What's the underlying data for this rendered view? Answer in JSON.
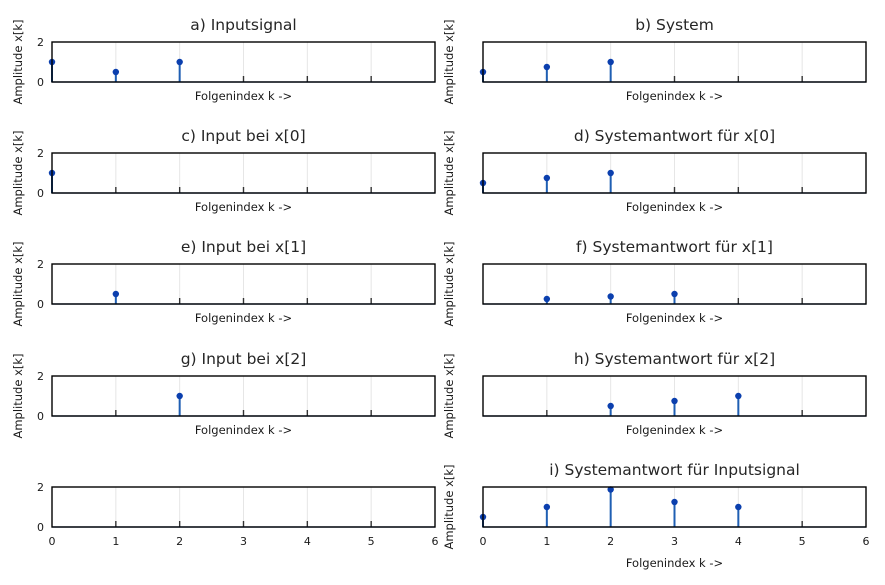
{
  "colors": {
    "stem": "#1f5fb3",
    "marker": "#0b3fae",
    "frame": "#000000",
    "grid": "#e6e6e6",
    "text": "#262626"
  },
  "chart_data": [
    {
      "id": "a",
      "type": "stem",
      "title": "a) Inputsignal",
      "xlabel": "Folgenindex k ->",
      "ylabel": "Amplitude x[k]",
      "x": [
        0,
        1,
        2,
        3,
        4,
        5
      ],
      "y": [
        1,
        0.5,
        1,
        0,
        0,
        0
      ],
      "xlim": [
        0,
        6
      ],
      "ylim": [
        0,
        2
      ],
      "yticks": [
        0,
        2
      ],
      "ytick_labels": [
        "0",
        "2"
      ],
      "xtick_labels": [],
      "grid": true
    },
    {
      "id": "b",
      "type": "stem",
      "title": "b) System",
      "xlabel": "Folgenindex k ->",
      "ylabel": "Amplitude x[k]",
      "x": [
        0,
        1,
        2,
        3,
        4,
        5
      ],
      "y": [
        0.5,
        0.75,
        1,
        0,
        0,
        0
      ],
      "xlim": [
        0,
        6
      ],
      "ylim": [
        0,
        2
      ],
      "yticks": [
        0,
        2
      ],
      "ytick_labels": [],
      "xtick_labels": [],
      "grid": true
    },
    {
      "id": "c",
      "type": "stem",
      "title": "c) Input bei x[0]",
      "xlabel": "Folgenindex k ->",
      "ylabel": "Amplitude x[k]",
      "x": [
        0,
        1,
        2,
        3,
        4,
        5
      ],
      "y": [
        1,
        0,
        0,
        0,
        0,
        0
      ],
      "xlim": [
        0,
        6
      ],
      "ylim": [
        0,
        2
      ],
      "yticks": [
        0,
        2
      ],
      "ytick_labels": [
        "0",
        "2"
      ],
      "xtick_labels": [],
      "grid": true
    },
    {
      "id": "d",
      "type": "stem",
      "title": "d) Systemantwort für x[0]",
      "xlabel": "Folgenindex k ->",
      "ylabel": "Amplitude x[k]",
      "x": [
        0,
        1,
        2,
        3,
        4,
        5
      ],
      "y": [
        0.5,
        0.75,
        1,
        0,
        0,
        0
      ],
      "xlim": [
        0,
        6
      ],
      "ylim": [
        0,
        2
      ],
      "yticks": [
        0,
        2
      ],
      "ytick_labels": [],
      "xtick_labels": [],
      "grid": true
    },
    {
      "id": "e",
      "type": "stem",
      "title": "e) Input bei x[1]",
      "xlabel": "Folgenindex k ->",
      "ylabel": "Amplitude x[k]",
      "x": [
        0,
        1,
        2,
        3,
        4,
        5
      ],
      "y": [
        0,
        0.5,
        0,
        0,
        0,
        0
      ],
      "xlim": [
        0,
        6
      ],
      "ylim": [
        0,
        2
      ],
      "yticks": [
        0,
        2
      ],
      "ytick_labels": [
        "0",
        "2"
      ],
      "xtick_labels": [],
      "grid": true
    },
    {
      "id": "f",
      "type": "stem",
      "title": "f) Systemantwort für x[1]",
      "xlabel": "Folgenindex k ->",
      "ylabel": "Amplitude x[k]",
      "x": [
        0,
        1,
        2,
        3,
        4,
        5
      ],
      "y": [
        0,
        0.25,
        0.375,
        0.5,
        0,
        0
      ],
      "xlim": [
        0,
        6
      ],
      "ylim": [
        0,
        2
      ],
      "yticks": [
        0,
        2
      ],
      "ytick_labels": [],
      "xtick_labels": [],
      "grid": true
    },
    {
      "id": "g",
      "type": "stem",
      "title": "g) Input bei x[2]",
      "xlabel": "Folgenindex k ->",
      "ylabel": "Amplitude x[k]",
      "x": [
        0,
        1,
        2,
        3,
        4,
        5
      ],
      "y": [
        0,
        0,
        1,
        0,
        0,
        0
      ],
      "xlim": [
        0,
        6
      ],
      "ylim": [
        0,
        2
      ],
      "yticks": [
        0,
        2
      ],
      "ytick_labels": [
        "0",
        "2"
      ],
      "xtick_labels": [],
      "grid": true
    },
    {
      "id": "h",
      "type": "stem",
      "title": "h) Systemantwort für x[2]",
      "xlabel": "Folgenindex k ->",
      "ylabel": "Amplitude x[k]",
      "x": [
        0,
        1,
        2,
        3,
        4,
        5
      ],
      "y": [
        0,
        0,
        0.5,
        0.75,
        1,
        0
      ],
      "xlim": [
        0,
        6
      ],
      "ylim": [
        0,
        2
      ],
      "yticks": [
        0,
        2
      ],
      "ytick_labels": [],
      "xtick_labels": [],
      "grid": true
    },
    {
      "id": "empty",
      "type": "stem",
      "title": "",
      "xlabel": "",
      "ylabel": "",
      "x": [],
      "y": [],
      "xlim": [
        0,
        6
      ],
      "ylim": [
        0,
        2
      ],
      "yticks": [
        0,
        2
      ],
      "ytick_labels": [
        "0",
        "2"
      ],
      "xtick_labels": [
        "0",
        "1",
        "2",
        "3",
        "4",
        "5",
        "6"
      ],
      "grid": true
    },
    {
      "id": "i",
      "type": "stem",
      "title": "i) Systemantwort für Inputsignal",
      "xlabel": "Folgenindex k ->",
      "ylabel": "Amplitude x[k]",
      "x": [
        0,
        1,
        2,
        3,
        4,
        5
      ],
      "y": [
        0.5,
        1,
        1.875,
        1.25,
        1,
        0
      ],
      "xlim": [
        0,
        6
      ],
      "ylim": [
        0,
        2
      ],
      "yticks": [
        0,
        2
      ],
      "ytick_labels": [],
      "xtick_labels": [
        "0",
        "1",
        "2",
        "3",
        "4",
        "5",
        "6"
      ],
      "grid": true
    }
  ]
}
